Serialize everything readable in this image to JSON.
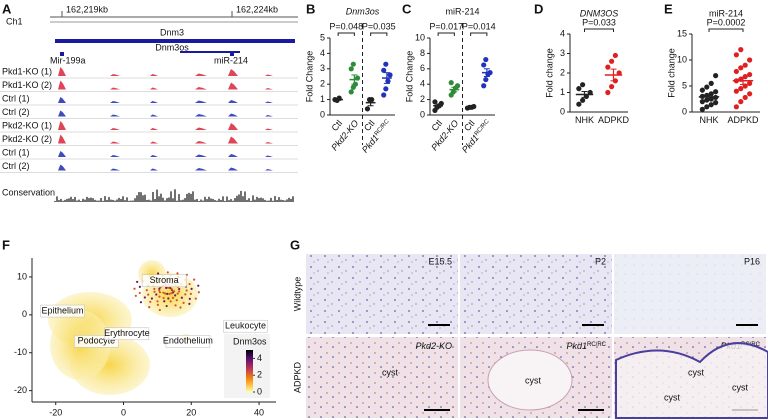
{
  "letters": [
    "A",
    "B",
    "C",
    "D",
    "E",
    "F",
    "G"
  ],
  "genome": {
    "chrom": "Ch1",
    "coords": [
      "162,219kb",
      "162,224kb"
    ],
    "gene": "Dnm3",
    "antisense": "Dnm3os",
    "mirs": [
      "Mir-199a",
      "miR-214"
    ],
    "tracks": [
      "Pkd1-KO (1)",
      "Pkd1-KO (2)",
      "Ctrl (1)",
      "Ctrl (2)",
      "Pkd2-KO (1)",
      "Pkd2-KO (2)",
      "Ctrl (1)",
      "Ctrl (2)"
    ],
    "conservation": "Conservation"
  },
  "chart_data": [
    {
      "type": "dot",
      "title": "Dnm3os",
      "title_italic": true,
      "ylabel": "Fold Change",
      "ylim": [
        0,
        5
      ],
      "yticks": [
        0,
        1,
        2,
        3,
        4,
        5
      ],
      "divided": true,
      "rotated": true,
      "p_labels": [
        "P=0.048",
        "P=0.035"
      ],
      "groups": [
        {
          "name": "Ctl",
          "color": "#222222",
          "values": [
            1.0,
            0.95,
            1.1
          ],
          "mean": 1.0,
          "sem": 0.05
        },
        {
          "name": "Pkd2-KO",
          "italic": true,
          "color": "#2e8b3a",
          "values": [
            1.5,
            1.8,
            2.0,
            2.4,
            3.0,
            3.3
          ],
          "mean": 2.3,
          "sem": 0.3
        },
        {
          "name": "Ctl",
          "color": "#222222",
          "values": [
            0.4,
            1.0,
            1.0
          ],
          "mean": 0.8,
          "sem": 0.2
        },
        {
          "name": "Pkd1",
          "sup": "RC/RC",
          "italic": true,
          "color": "#2233bb",
          "values": [
            1.3,
            1.7,
            2.2,
            2.6,
            2.9,
            3.3
          ],
          "mean": 2.4,
          "sem": 0.35
        }
      ]
    },
    {
      "type": "dot",
      "title": "miR-214",
      "ylabel": "Fold  Change",
      "ylim": [
        0,
        10
      ],
      "yticks": [
        0,
        2,
        4,
        6,
        8,
        10
      ],
      "divided": true,
      "rotated": true,
      "p_labels": [
        "P=0.017",
        "P=0.014"
      ],
      "groups": [
        {
          "name": "Ctl",
          "color": "#222222",
          "values": [
            0.6,
            1.0,
            1.2,
            1.5,
            1.7
          ],
          "mean": 1.2,
          "sem": 0.2
        },
        {
          "name": "Pkd2-KO",
          "italic": true,
          "color": "#2e8b3a",
          "values": [
            2.6,
            3.0,
            3.5,
            3.8,
            4.2
          ],
          "mean": 3.3,
          "sem": 0.3
        },
        {
          "name": "Ctl",
          "color": "#222222",
          "values": [
            0.9,
            1.0,
            1.0,
            1.1
          ],
          "mean": 1.0,
          "sem": 0.05
        },
        {
          "name": "Pkd1",
          "sup": "RC/RC",
          "italic": true,
          "color": "#2233bb",
          "values": [
            3.8,
            4.6,
            5.3,
            5.5,
            6.5,
            7.2
          ],
          "mean": 5.5,
          "sem": 0.5
        }
      ]
    },
    {
      "type": "dot",
      "title": "DNM3OS",
      "title_italic": true,
      "ylabel": "Fold change",
      "ylim": [
        0,
        4
      ],
      "yticks": [
        0,
        1,
        2,
        3,
        4
      ],
      "p_labels": [
        "P=0.033"
      ],
      "groups": [
        {
          "name": "NHK",
          "color": "#222222",
          "values": [
            0.4,
            0.6,
            0.8,
            1.0,
            1.2,
            1.4
          ],
          "mean": 0.9,
          "sem": 0.15
        },
        {
          "name": "ADPKD",
          "color": "#e02020",
          "values": [
            1.0,
            1.3,
            1.6,
            2.0,
            2.3,
            2.6,
            2.9
          ],
          "mean": 1.9,
          "sem": 0.3
        }
      ]
    },
    {
      "type": "dot",
      "title": "miR-214",
      "ylabel": "Fold change",
      "ylim": [
        0,
        15
      ],
      "yticks": [
        0,
        5,
        10,
        15
      ],
      "p_labels": [
        "P=0.0002"
      ],
      "groups": [
        {
          "name": "NHK",
          "color": "#222222",
          "values": [
            0.5,
            1.0,
            1.4,
            1.8,
            2.0,
            2.3,
            2.5,
            2.8,
            3.0,
            3.2,
            3.5,
            3.9,
            4.2,
            4.8,
            5.5,
            7.0
          ],
          "mean": 2.9,
          "sem": 0.4
        },
        {
          "name": "ADPKD",
          "color": "#e02020",
          "values": [
            1.0,
            2.0,
            2.8,
            3.5,
            4.0,
            4.5,
            5.0,
            5.5,
            6.0,
            6.3,
            6.8,
            7.2,
            7.8,
            8.5,
            9.0,
            10.0,
            11.0,
            12.0
          ],
          "mean": 6.0,
          "sem": 0.7
        }
      ]
    },
    {
      "type": "embedding",
      "xlim": [
        -27,
        45
      ],
      "ylim": [
        -23,
        15
      ],
      "xticks": [
        -20,
        0,
        20,
        40
      ],
      "yticks": [
        -20,
        -10,
        0,
        10
      ],
      "clusters": [
        {
          "label": "Stroma",
          "x": 12,
          "y": 9
        },
        {
          "label": "Epithelium",
          "x": -18,
          "y": 1
        },
        {
          "label": "Podocyte",
          "x": -8,
          "y": -7
        },
        {
          "label": "Erythrocyte",
          "x": 1,
          "y": -5
        },
        {
          "label": "Endothelium",
          "x": 19,
          "y": -7
        },
        {
          "label": "Leukocyte",
          "x": 36,
          "y": -3
        }
      ],
      "colorbar": {
        "label": "Dnm3os",
        "lim": [
          0,
          5
        ],
        "ticks": [
          0,
          2,
          4
        ]
      }
    }
  ],
  "micrographs": {
    "rows": [
      "Wildtype",
      "ADPKD"
    ],
    "top": [
      "E15.5",
      "P2",
      "P16"
    ],
    "bottom": [
      {
        "name": "Pkd2-KO"
      },
      {
        "name": "Pkd1",
        "sup": "RC/RC"
      },
      {
        "name": "Pkd1",
        "sup": "RC/RC"
      }
    ],
    "cysts": [
      "cyst",
      "cyst",
      "cyst",
      "cyst",
      "cyst"
    ]
  }
}
